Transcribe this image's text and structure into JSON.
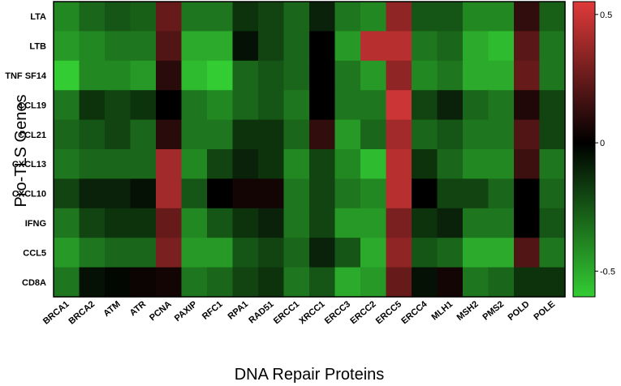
{
  "chart_data": {
    "type": "heatmap",
    "xlabel": "DNA Repair Proteins",
    "ylabel": "Pro-TLS Genes",
    "rows": [
      "LTA",
      "LTB",
      "TNF SF14",
      "CCL19",
      "CCL21",
      "CXCL13",
      "CXCL10",
      "IFNG",
      "CCL5",
      "CD8A"
    ],
    "columns": [
      "BRCA1",
      "BRCA2",
      "ATM",
      "ATR",
      "PCNA",
      "PAXIP",
      "RFC1",
      "RPA1",
      "RAD51",
      "ERCC1",
      "XRCC1",
      "ERCC3",
      "ERCC2",
      "ERCC5",
      "ERCC4",
      "MLH1",
      "MSH2",
      "PMS2",
      "POLD",
      "POLE"
    ],
    "values": [
      [
        -0.4,
        -0.3,
        -0.25,
        -0.28,
        0.25,
        -0.35,
        -0.35,
        -0.15,
        -0.2,
        -0.3,
        -0.1,
        -0.35,
        -0.4,
        0.35,
        -0.25,
        -0.25,
        -0.4,
        -0.4,
        0.12,
        -0.28
      ],
      [
        -0.45,
        -0.4,
        -0.35,
        -0.35,
        0.2,
        -0.5,
        -0.5,
        -0.05,
        -0.2,
        -0.3,
        0.0,
        -0.45,
        0.45,
        0.45,
        -0.35,
        -0.3,
        -0.5,
        -0.55,
        0.22,
        -0.35
      ],
      [
        -0.6,
        -0.4,
        -0.4,
        -0.45,
        0.1,
        -0.55,
        -0.6,
        -0.3,
        -0.25,
        -0.3,
        0.0,
        -0.35,
        -0.45,
        0.35,
        -0.4,
        -0.35,
        -0.5,
        -0.5,
        0.25,
        -0.35
      ],
      [
        -0.35,
        -0.15,
        -0.2,
        -0.15,
        0.0,
        -0.35,
        -0.4,
        -0.3,
        -0.25,
        -0.35,
        0.0,
        -0.35,
        -0.35,
        0.5,
        -0.2,
        -0.1,
        -0.3,
        -0.35,
        0.08,
        -0.2
      ],
      [
        -0.3,
        -0.25,
        -0.2,
        -0.3,
        0.1,
        -0.35,
        -0.35,
        -0.15,
        -0.15,
        -0.3,
        0.12,
        -0.45,
        -0.3,
        0.4,
        -0.3,
        -0.25,
        -0.35,
        -0.35,
        0.2,
        -0.2
      ],
      [
        -0.35,
        -0.3,
        -0.3,
        -0.3,
        0.4,
        -0.4,
        -0.2,
        -0.1,
        -0.15,
        -0.4,
        -0.2,
        -0.4,
        -0.55,
        0.45,
        -0.15,
        -0.3,
        -0.4,
        -0.4,
        0.15,
        -0.35
      ],
      [
        -0.2,
        -0.1,
        -0.1,
        -0.05,
        0.4,
        -0.25,
        0.0,
        0.05,
        0.05,
        -0.35,
        -0.2,
        -0.35,
        -0.4,
        0.45,
        0.0,
        -0.2,
        -0.2,
        -0.3,
        0.0,
        -0.3
      ],
      [
        -0.35,
        -0.2,
        -0.15,
        -0.15,
        0.25,
        -0.4,
        -0.25,
        -0.15,
        -0.1,
        -0.35,
        -0.2,
        -0.45,
        -0.45,
        0.3,
        -0.15,
        -0.1,
        -0.35,
        -0.35,
        0.0,
        -0.25
      ],
      [
        -0.45,
        -0.35,
        -0.3,
        -0.3,
        0.3,
        -0.45,
        -0.45,
        -0.25,
        -0.2,
        -0.3,
        -0.1,
        -0.25,
        -0.5,
        0.35,
        -0.25,
        -0.3,
        -0.5,
        -0.5,
        0.2,
        -0.35
      ],
      [
        -0.35,
        -0.05,
        -0.02,
        0.03,
        0.05,
        -0.35,
        -0.3,
        -0.2,
        -0.15,
        -0.35,
        -0.25,
        -0.5,
        -0.45,
        0.25,
        -0.05,
        0.05,
        -0.35,
        -0.3,
        -0.15,
        -0.15
      ]
    ],
    "colorbar": {
      "min": -0.6,
      "max": 0.55,
      "ticks": [
        0.5,
        0,
        -0.5
      ],
      "tick_labels": [
        "0.5",
        "0",
        "-0.5"
      ]
    },
    "colors": {
      "negative": "#33cc33",
      "zero": "#000000",
      "positive": "#e03a3a"
    }
  }
}
